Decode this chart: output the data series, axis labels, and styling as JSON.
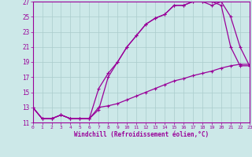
{
  "xlabel": "Windchill (Refroidissement éolien,°C)",
  "background_color": "#cce8e8",
  "grid_color": "#aacccc",
  "line_color": "#990099",
  "xmin": 0,
  "xmax": 23,
  "ymin": 11,
  "ymax": 27,
  "yticks": [
    11,
    13,
    15,
    17,
    19,
    21,
    23,
    25,
    27
  ],
  "xticks": [
    0,
    1,
    2,
    3,
    4,
    5,
    6,
    7,
    8,
    9,
    10,
    11,
    12,
    13,
    14,
    15,
    16,
    17,
    18,
    19,
    20,
    21,
    22,
    23
  ],
  "line1_x": [
    0,
    1,
    2,
    3,
    4,
    5,
    6,
    7,
    8,
    9,
    10,
    11,
    12,
    13,
    14,
    15,
    16,
    17,
    18,
    19,
    20,
    21,
    22,
    23
  ],
  "line1_y": [
    13,
    11.5,
    11.5,
    12,
    11.5,
    11.5,
    11.5,
    12.7,
    17.0,
    19.0,
    21.0,
    22.5,
    24.0,
    24.8,
    25.3,
    26.5,
    26.5,
    27.0,
    27.0,
    26.5,
    27.0,
    25.0,
    21.0,
    18.5
  ],
  "line2_x": [
    0,
    1,
    2,
    3,
    4,
    5,
    6,
    7,
    8,
    9,
    10,
    11,
    12,
    13,
    14,
    15,
    16,
    17,
    18,
    19,
    20,
    21,
    22,
    23
  ],
  "line2_y": [
    13,
    11.5,
    11.5,
    12,
    11.5,
    11.5,
    11.5,
    15.5,
    17.5,
    19.0,
    21.0,
    22.5,
    24.0,
    24.8,
    25.3,
    26.5,
    26.5,
    27.0,
    27.0,
    27.0,
    26.5,
    21.0,
    18.5,
    18.5
  ],
  "line3_x": [
    0,
    1,
    2,
    3,
    4,
    5,
    6,
    7,
    8,
    9,
    10,
    11,
    12,
    13,
    14,
    15,
    16,
    17,
    18,
    19,
    20,
    21,
    22,
    23
  ],
  "line3_y": [
    13,
    11.5,
    11.5,
    12,
    11.5,
    11.5,
    11.5,
    13.0,
    13.2,
    13.5,
    14.0,
    14.5,
    15.0,
    15.5,
    16.0,
    16.5,
    16.8,
    17.2,
    17.5,
    17.8,
    18.2,
    18.5,
    18.7,
    18.7
  ]
}
